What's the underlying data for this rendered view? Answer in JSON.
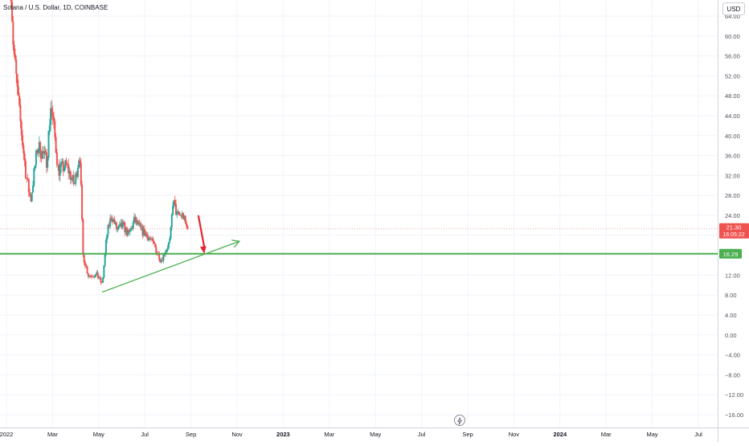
{
  "header": {
    "title": "Solana / U.S. Dollar, 1D, COINBASE"
  },
  "currency_button": "USD",
  "colors": {
    "up": "#26a69a",
    "down": "#ef5350",
    "support": "#4caf50",
    "arrow": "#e8242e",
    "grid": "#f0f3fa"
  },
  "price_badge": {
    "price": "21.30",
    "countdown": "16:05:22",
    "color": "#ef5350"
  },
  "level_badge": {
    "price": "16.29",
    "color": "#4caf50"
  },
  "chart_data": {
    "type": "candlestick",
    "title": "Solana / U.S. Dollar, 1D, COINBASE",
    "xlabel": "",
    "ylabel": "",
    "x_ticks": [
      "2022",
      "Mar",
      "May",
      "Jul",
      "Sep",
      "Nov",
      "2023",
      "Mar",
      "May",
      "Jul",
      "Sep",
      "Nov",
      "2024",
      "Mar",
      "May",
      "Jul"
    ],
    "y_ticks": [
      "64.00",
      "60.00",
      "56.00",
      "52.00",
      "48.00",
      "44.00",
      "40.00",
      "36.00",
      "32.00",
      "28.00",
      "24.00",
      "20.00",
      "16.00",
      "12.00",
      "8.00",
      "4.00",
      "0.00",
      "−4.00",
      "−8.00",
      "−12.00",
      "−16.00"
    ],
    "ylim": [
      -17.5,
      65
    ],
    "last_price": 21.3,
    "horizontal_level": 16.29,
    "anchors": [
      {
        "x": 0.2,
        "y": 70
      },
      {
        "x": 0.3,
        "y": 58
      },
      {
        "x": 0.55,
        "y": 45
      },
      {
        "x": 0.85,
        "y": 32
      },
      {
        "x": 1.05,
        "y": 27
      },
      {
        "x": 1.35,
        "y": 38
      },
      {
        "x": 1.75,
        "y": 35
      },
      {
        "x": 1.92,
        "y": 46
      },
      {
        "x": 2.02,
        "y": 43
      },
      {
        "x": 2.25,
        "y": 33
      },
      {
        "x": 2.6,
        "y": 34
      },
      {
        "x": 2.95,
        "y": 30
      },
      {
        "x": 3.18,
        "y": 37
      },
      {
        "x": 3.32,
        "y": 16
      },
      {
        "x": 3.55,
        "y": 12
      },
      {
        "x": 3.95,
        "y": 12
      },
      {
        "x": 4.15,
        "y": 10
      },
      {
        "x": 4.35,
        "y": 20
      },
      {
        "x": 4.55,
        "y": 24
      },
      {
        "x": 4.8,
        "y": 21
      },
      {
        "x": 5.05,
        "y": 22
      },
      {
        "x": 5.3,
        "y": 20
      },
      {
        "x": 5.55,
        "y": 23
      },
      {
        "x": 5.85,
        "y": 21
      },
      {
        "x": 6.1,
        "y": 20
      },
      {
        "x": 6.4,
        "y": 18
      },
      {
        "x": 6.7,
        "y": 15
      },
      {
        "x": 6.9,
        "y": 17
      },
      {
        "x": 7.1,
        "y": 19
      },
      {
        "x": 7.22,
        "y": 27
      },
      {
        "x": 7.4,
        "y": 24
      },
      {
        "x": 7.65,
        "y": 24
      },
      {
        "x": 7.78,
        "y": 22
      },
      {
        "x": 7.85,
        "y": 21.3
      }
    ],
    "trend_line": {
      "from": {
        "x": 4.15,
        "y": 8.6
      },
      "to": {
        "x": 8.6,
        "y": 16.29
      }
    },
    "trend_arrow_tip": {
      "x": 10.1,
      "y": 18.8
    },
    "red_arrow": {
      "from": {
        "x": 8.32,
        "y": 24
      },
      "to": {
        "x": 8.58,
        "y": 16.29
      }
    },
    "x_axis": {
      "months_per_label": 2,
      "first_label_month_index": 0
    }
  }
}
